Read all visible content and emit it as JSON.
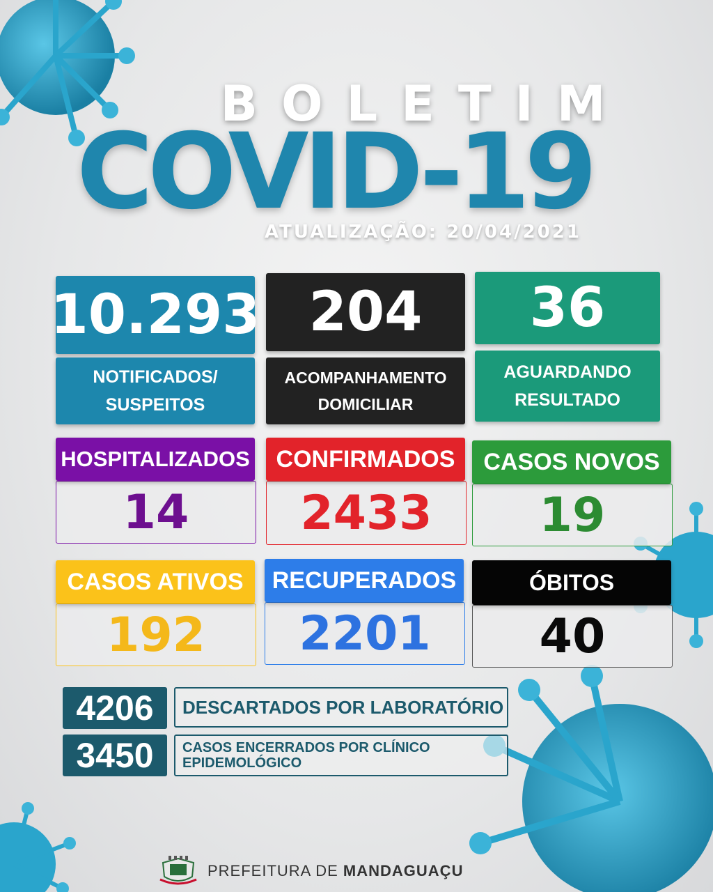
{
  "header": {
    "boletim": "BOLETIM",
    "covid": "COVID-19",
    "update": "ATUALIZAÇÃO: 20/04/2021"
  },
  "top_tiles": [
    {
      "value": "10.293",
      "label_line1": "NOTIFICADOS/",
      "label_line2": "SUSPEITOS",
      "color": "#1d87ad"
    },
    {
      "value": "204",
      "label_line1": "ACOMPANHAMENTO",
      "label_line2": "DOMICILIAR",
      "color": "#222222"
    },
    {
      "value": "36",
      "label_line1": "AGUARDANDO",
      "label_line2": "RESULTADO",
      "color": "#1b9a7a"
    }
  ],
  "mid_tiles": [
    {
      "label": "HOSPITALIZADOS",
      "value": "14",
      "color": "#7a10a6",
      "text_color": "#6d0f8f"
    },
    {
      "label": "CONFIRMADOS",
      "value": "2433",
      "color": "#e2232a",
      "text_color": "#e2232a"
    },
    {
      "label": "CASOS NOVOS",
      "value": "19",
      "color": "#2c9b3b",
      "text_color": "#2c8b32"
    },
    {
      "label": "CASOS ATIVOS",
      "value": "192",
      "color": "#fbc21a",
      "text_color": "#f4b81a"
    },
    {
      "label": "RECUPERADOS",
      "value": "2201",
      "color": "#2d7de9",
      "text_color": "#2d72e0"
    },
    {
      "label": "ÓBITOS",
      "value": "40",
      "color": "#050505",
      "text_color": "#0a0a0a"
    }
  ],
  "bottom_rows": [
    {
      "value": "4206",
      "label": "DESCARTADOS POR LABORATÓRIO"
    },
    {
      "value": "3450",
      "label_line1": "CASOS ENCERRADOS POR CLÍNICO",
      "label_line2": "EPIDEMOLÓGICO"
    }
  ],
  "footer": {
    "prefix": "PREFEITURA DE ",
    "city": "MANDAGUAÇU"
  },
  "colors": {
    "virus": "#2aa5cc",
    "brand_blue": "#1f86ad"
  }
}
